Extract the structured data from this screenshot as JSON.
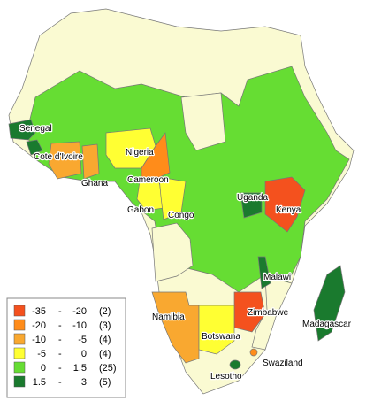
{
  "map": {
    "legend": {
      "separator": "-",
      "items": [
        {
          "min": "-35",
          "max": "-20",
          "count": "(2)",
          "color": "#f4511e"
        },
        {
          "min": "-20",
          "max": "-10",
          "count": "(3)",
          "color": "#ff8c1a"
        },
        {
          "min": "-10",
          "max": "-5",
          "count": "(4)",
          "color": "#f9a830"
        },
        {
          "min": "-5",
          "max": "0",
          "count": "(4)",
          "color": "#ffff33"
        },
        {
          "min": "0",
          "max": "1.5",
          "count": "(25)",
          "color": "#66dd33"
        },
        {
          "min": "1.5",
          "max": "3",
          "count": "(5)",
          "color": "#1a7a2e"
        }
      ]
    },
    "base_color": "#fafad2",
    "countries": [
      {
        "name": "Senegal",
        "class": 5
      },
      {
        "name": "Cote d'Ivoire",
        "class": 2
      },
      {
        "name": "Ghana",
        "class": 2
      },
      {
        "name": "Nigeria",
        "class": 3
      },
      {
        "name": "Cameroon",
        "class": 1
      },
      {
        "name": "Gabon",
        "class": 3
      },
      {
        "name": "Congo",
        "class": 3
      },
      {
        "name": "Uganda",
        "class": 5
      },
      {
        "name": "Kenya",
        "class": 0
      },
      {
        "name": "Malawi",
        "class": 5
      },
      {
        "name": "Namibia",
        "class": 2
      },
      {
        "name": "Zimbabwe",
        "class": 0
      },
      {
        "name": "Botswana",
        "class": 3
      },
      {
        "name": "Madagascar",
        "class": 5
      },
      {
        "name": "Swaziland",
        "class": 1
      },
      {
        "name": "Lesotho",
        "class": 5
      }
    ]
  }
}
